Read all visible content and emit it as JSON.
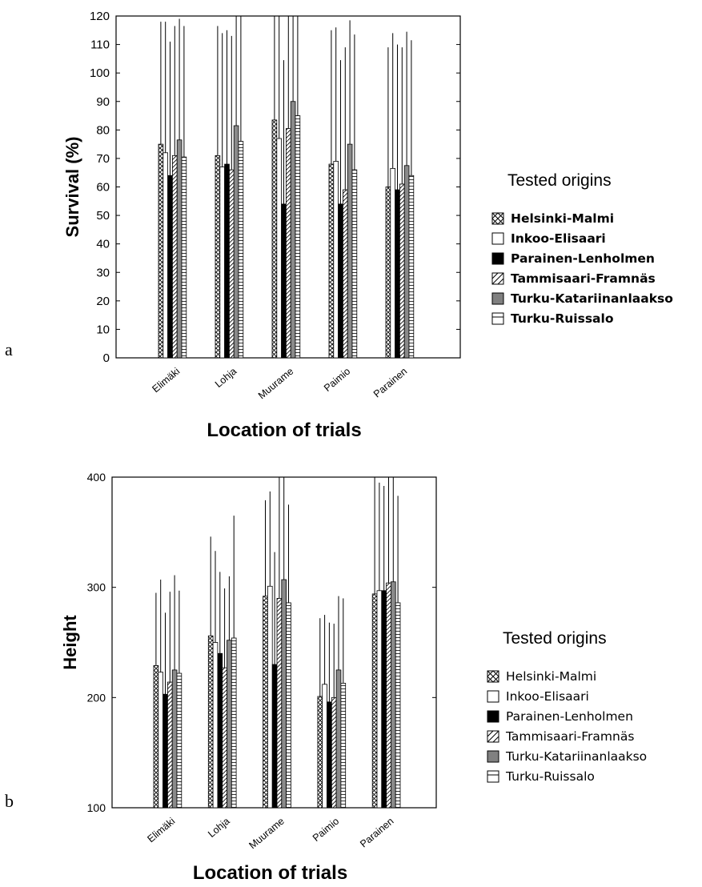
{
  "panel_labels": [
    "a",
    "b"
  ],
  "legend": {
    "title": "Tested origins",
    "entries": [
      "Helsinki-Malmi",
      "Inkoo-Elisaari",
      "Parainen-Lenholmen",
      "Tammisaari-Framnäs",
      "Turku-Katariinanlaakso",
      "Turku-Ruissalo"
    ]
  },
  "chart_data": [
    {
      "type": "bar",
      "title": "",
      "xlabel": "Location of trials",
      "ylabel": "Survival (%)",
      "ylim": [
        0,
        120
      ],
      "yticks": [
        0,
        10,
        20,
        30,
        40,
        50,
        60,
        70,
        80,
        90,
        100,
        110,
        120
      ],
      "categories": [
        "Elimäki",
        "Lohja",
        "Muurame",
        "Paimio",
        "Parainen"
      ],
      "legend_position": "right",
      "series": [
        {
          "name": "Helsinki-Malmi",
          "pattern": "crosshatch",
          "values": [
            75,
            71,
            83.5,
            68,
            60
          ],
          "error_top": [
            118,
            116.5,
            120,
            115,
            109
          ]
        },
        {
          "name": "Inkoo-Elisaari",
          "pattern": "white",
          "values": [
            72,
            67,
            77,
            69,
            66.5
          ],
          "error_top": [
            118,
            114,
            120,
            116,
            114
          ]
        },
        {
          "name": "Parainen-Lenholmen",
          "pattern": "black",
          "values": [
            64,
            68,
            54,
            54,
            59
          ],
          "error_top": [
            111,
            115,
            104.5,
            104.5,
            110
          ]
        },
        {
          "name": "Tammisaari-Framnäs",
          "pattern": "diagonal",
          "values": [
            71,
            66,
            80.5,
            59,
            61
          ],
          "error_top": [
            116.5,
            113,
            120,
            109,
            109
          ]
        },
        {
          "name": "Turku-Katariinanlaakso",
          "pattern": "gray",
          "values": [
            76.5,
            81.5,
            90,
            75,
            67.5
          ],
          "error_top": [
            119,
            120,
            120,
            118.5,
            114.5
          ]
        },
        {
          "name": "Turku-Ruissalo",
          "pattern": "horizontal",
          "values": [
            70.5,
            76,
            85,
            66,
            64
          ],
          "error_top": [
            116.5,
            120,
            120,
            113.5,
            111.5
          ]
        }
      ]
    },
    {
      "type": "bar",
      "title": "",
      "xlabel": "Location of trials",
      "ylabel": "Height",
      "ylim": [
        100,
        400
      ],
      "yticks": [
        100,
        200,
        300,
        400
      ],
      "categories": [
        "Elimäki",
        "Lohja",
        "Muurame",
        "Paimio",
        "Parainen"
      ],
      "legend_position": "right",
      "series": [
        {
          "name": "Helsinki-Malmi",
          "pattern": "crosshatch",
          "values": [
            229,
            256,
            292,
            201,
            294
          ],
          "error_top": [
            295,
            346,
            379,
            272,
            400
          ]
        },
        {
          "name": "Inkoo-Elisaari",
          "pattern": "white",
          "values": [
            223,
            250,
            301,
            212,
            297
          ],
          "error_top": [
            307,
            333,
            387,
            275,
            395
          ]
        },
        {
          "name": "Parainen-Lenholmen",
          "pattern": "black",
          "values": [
            203,
            240,
            230,
            196,
            297
          ],
          "error_top": [
            277,
            314,
            332,
            268,
            392
          ]
        },
        {
          "name": "Tammisaari-Framnäs",
          "pattern": "diagonal",
          "values": [
            214,
            227,
            290,
            200,
            304
          ],
          "error_top": [
            296,
            299,
            400,
            267,
            400
          ]
        },
        {
          "name": "Turku-Katariinanlaakso",
          "pattern": "gray",
          "values": [
            225,
            252,
            307,
            225,
            305
          ],
          "error_top": [
            311,
            310,
            400,
            292,
            400
          ]
        },
        {
          "name": "Turku-Ruissalo",
          "pattern": "horizontal",
          "values": [
            222,
            254,
            286,
            213,
            286
          ],
          "error_top": [
            297,
            365,
            375,
            290,
            383
          ]
        }
      ]
    }
  ]
}
